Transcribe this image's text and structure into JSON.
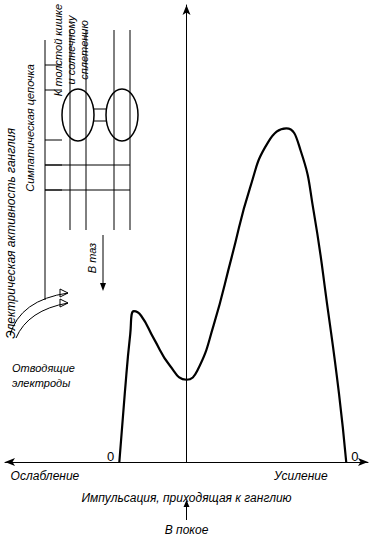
{
  "chart_data": {
    "type": "line",
    "xlabel": "Импульсация, приходящая к ганглию",
    "ylabel": "Электрическая активность ганглия",
    "x": [
      -0.37,
      -0.34,
      -0.31,
      -0.29,
      -0.25,
      -0.18,
      -0.09,
      0,
      0.06,
      0.15,
      0.25,
      0.35,
      0.45,
      0.55,
      0.63,
      0.7,
      0.78,
      0.84,
      0.88
    ],
    "values": [
      0,
      0.15,
      0.28,
      0.33,
      0.32,
      0.27,
      0.21,
      0.18,
      0.2,
      0.3,
      0.45,
      0.6,
      0.7,
      0.73,
      0.68,
      0.55,
      0.33,
      0.15,
      0
    ],
    "color": "#000000",
    "xlim": [
      -1,
      1
    ],
    "ylim": [
      0,
      1
    ],
    "xticks": [],
    "yticks": [],
    "tick_labels": false,
    "grid": false,
    "annotations": [
      {
        "text": "0",
        "x": -0.37,
        "y": 0
      },
      {
        "text": "0",
        "x": 0.88,
        "y": 0
      },
      {
        "text": "Ослабление",
        "x": -0.78
      },
      {
        "text": "Усиление",
        "x": 0.63
      },
      {
        "text": "В покое",
        "x": 0
      }
    ],
    "inset": {
      "chain": "Симпатическая цепочка",
      "target": [
        "К толстой кишке",
        "и солнечному",
        "сплетению"
      ],
      "pelvis": "В таз",
      "electrodes": [
        "Отводящие",
        "электроды"
      ]
    }
  }
}
